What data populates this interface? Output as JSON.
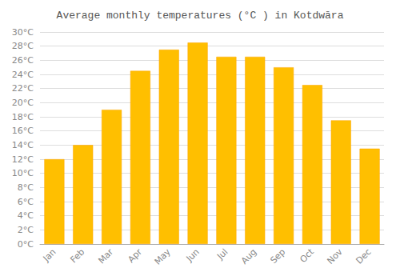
{
  "chart_data": {
    "type": "bar",
    "title": "Average monthly temperatures (°C ) in Kotdwāra",
    "categories": [
      "Jan",
      "Feb",
      "Mar",
      "Apr",
      "May",
      "Jun",
      "Jul",
      "Aug",
      "Sep",
      "Oct",
      "Nov",
      "Dec"
    ],
    "values": [
      12,
      14,
      19,
      24.5,
      27.5,
      28.5,
      26.5,
      26.5,
      25,
      22.5,
      17.5,
      13.5
    ],
    "color": "#FFBF00",
    "ylim": [
      0,
      30
    ],
    "yticks": [
      {
        "value": 0,
        "label": "0°C"
      },
      {
        "value": 2,
        "label": "2°C"
      },
      {
        "value": 4,
        "label": "4°C"
      },
      {
        "value": 6,
        "label": "6°C"
      },
      {
        "value": 8,
        "label": "8°C"
      },
      {
        "value": 10,
        "label": "10°C"
      },
      {
        "value": 12,
        "label": "12°C"
      },
      {
        "value": 14,
        "label": "14°C"
      },
      {
        "value": 16,
        "label": "16°C"
      },
      {
        "value": 18,
        "label": "18°C"
      },
      {
        "value": 20,
        "label": "20°C"
      },
      {
        "value": 22,
        "label": "22°C"
      },
      {
        "value": 24,
        "label": "24°C"
      },
      {
        "value": 26,
        "label": "26°C"
      },
      {
        "value": 28,
        "label": "28°C"
      },
      {
        "value": 30,
        "label": "30°C"
      }
    ],
    "grid": true
  }
}
